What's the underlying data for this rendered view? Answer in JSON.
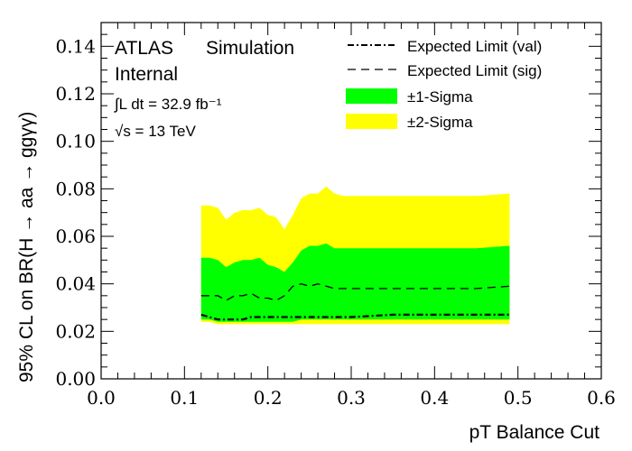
{
  "chart_data": {
    "type": "area",
    "labels": {
      "atlas": "ATLAS",
      "simulation": "Simulation",
      "internal": "Internal",
      "lumi": "∫L dt = 32.9 fb⁻¹",
      "energy": "√s = 13 TeV"
    },
    "xlabel": "pT Balance Cut",
    "ylabel": "95% CL on BR(H → aa → ggγγ)",
    "xlim": [
      0.0,
      0.6
    ],
    "ylim": [
      0.0,
      0.15
    ],
    "xticks": [
      "0.0",
      "0.1",
      "0.2",
      "0.3",
      "0.4",
      "0.5",
      "0.6"
    ],
    "yticks": [
      "0.00",
      "0.02",
      "0.04",
      "0.06",
      "0.08",
      "0.10",
      "0.12",
      "0.14"
    ],
    "legend": {
      "placement": "top-right",
      "entries": [
        {
          "label": "Expected Limit (val)",
          "style": "dashdot"
        },
        {
          "label": "Expected Limit (sig)",
          "style": "dashed"
        },
        {
          "label": "±1-Sigma",
          "style": "fill-green"
        },
        {
          "label": "±2-Sigma",
          "style": "fill-yellow"
        }
      ]
    },
    "colors": {
      "one_sigma": "#00ff00",
      "two_sigma": "#ffff00",
      "line": "#000000"
    },
    "x": [
      0.12,
      0.13,
      0.14,
      0.15,
      0.16,
      0.17,
      0.18,
      0.19,
      0.2,
      0.21,
      0.22,
      0.23,
      0.24,
      0.25,
      0.26,
      0.27,
      0.28,
      0.29,
      0.3,
      0.35,
      0.4,
      0.45,
      0.49
    ],
    "series": [
      {
        "name": "Expected Limit (val)",
        "values": [
          0.027,
          0.026,
          0.025,
          0.025,
          0.025,
          0.025,
          0.026,
          0.026,
          0.026,
          0.026,
          0.026,
          0.026,
          0.026,
          0.026,
          0.026,
          0.026,
          0.026,
          0.026,
          0.026,
          0.027,
          0.027,
          0.027,
          0.027
        ]
      },
      {
        "name": "Expected Limit (sig)",
        "values": [
          0.035,
          0.035,
          0.035,
          0.033,
          0.035,
          0.035,
          0.036,
          0.034,
          0.034,
          0.033,
          0.035,
          0.039,
          0.04,
          0.039,
          0.04,
          0.039,
          0.038,
          0.038,
          0.038,
          0.038,
          0.038,
          0.038,
          0.039
        ]
      }
    ],
    "bands": {
      "two_sigma_upper": [
        0.073,
        0.073,
        0.072,
        0.067,
        0.07,
        0.071,
        0.071,
        0.072,
        0.069,
        0.068,
        0.063,
        0.069,
        0.076,
        0.078,
        0.078,
        0.081,
        0.078,
        0.077,
        0.077,
        0.077,
        0.077,
        0.077,
        0.078
      ],
      "one_sigma_upper": [
        0.051,
        0.051,
        0.05,
        0.047,
        0.049,
        0.05,
        0.05,
        0.051,
        0.048,
        0.047,
        0.045,
        0.049,
        0.054,
        0.056,
        0.056,
        0.057,
        0.055,
        0.055,
        0.055,
        0.055,
        0.055,
        0.055,
        0.056
      ],
      "one_sigma_lower": [
        0.025,
        0.025,
        0.024,
        0.024,
        0.024,
        0.024,
        0.024,
        0.024,
        0.024,
        0.024,
        0.024,
        0.024,
        0.025,
        0.025,
        0.025,
        0.025,
        0.025,
        0.025,
        0.025,
        0.025,
        0.025,
        0.025,
        0.025
      ],
      "two_sigma_lower": [
        0.024,
        0.024,
        0.023,
        0.023,
        0.023,
        0.023,
        0.023,
        0.023,
        0.023,
        0.023,
        0.023,
        0.023,
        0.023,
        0.023,
        0.023,
        0.023,
        0.023,
        0.023,
        0.023,
        0.023,
        0.023,
        0.023,
        0.023
      ]
    }
  }
}
